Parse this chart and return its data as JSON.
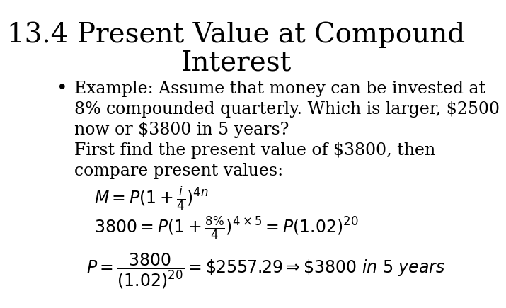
{
  "background_color": "#ffffff",
  "title_line1": "13.4 Present Value at Compound",
  "title_line2": "Interest",
  "title_fontsize": 28,
  "title_font": "serif",
  "bullet_text_lines": [
    "Example: Assume that money can be invested at",
    "8% compounded quarterly. Which is larger, $2500",
    "now or $3800 in 5 years?",
    "First find the present value of $3800, then",
    "compare present values:"
  ],
  "bullet_fontsize": 17,
  "math_formula1": "$M = P(1 + \\frac{i}{4})^{4n}$",
  "math_formula2": "$3800 = P(1 + \\frac{8\\%}{4})^{4 \\times 5} = P(1.02)^{20}$",
  "math_formula3": "$P = \\dfrac{3800}{(1.02)^{20}} = \\$2557.29 \\Rightarrow \\$3800\\ \\mathit{in\\ 5\\ years}$",
  "math_fontsize": 17,
  "text_color": "#000000"
}
